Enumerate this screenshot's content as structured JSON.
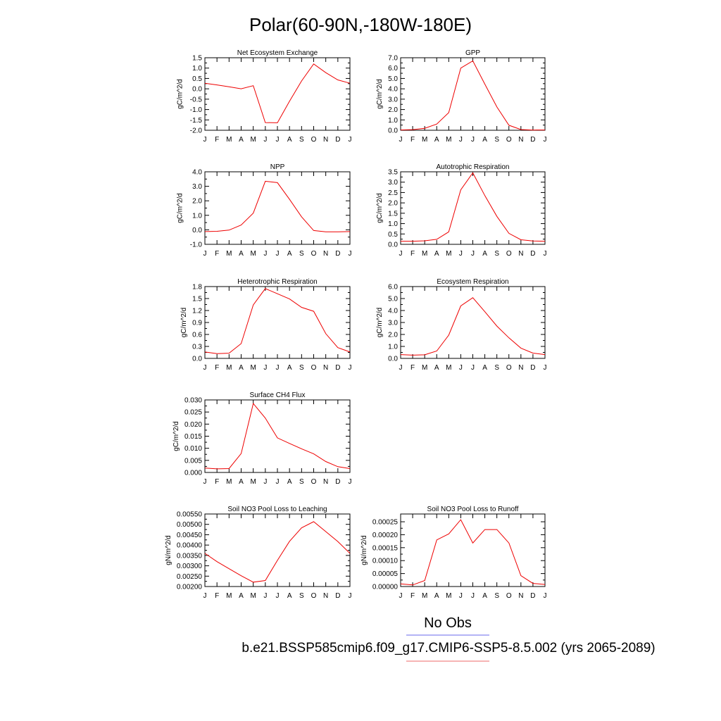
{
  "title": "Polar(60-90N,-180W-180E)",
  "legend": {
    "obs_label": "No Obs",
    "obs_color": "#6a6aee",
    "case_label": "b.e21.BSSP585cmip6.f09_g17.CMIP6-SSP5-8.5.002 (yrs 2065-2089)",
    "case_color": "#ee6a6a"
  },
  "line_color": "#ee0000",
  "chart_data": [
    {
      "type": "line",
      "title": "Net Ecosystem Exchange",
      "ylabel": "gC/m^2/d",
      "categories": [
        "J",
        "F",
        "M",
        "A",
        "M",
        "J",
        "J",
        "A",
        "S",
        "O",
        "N",
        "D",
        "J"
      ],
      "yticks": [
        "1.5",
        "1.0",
        "0.5",
        "0.0",
        "-0.5",
        "-1.0",
        "-1.5",
        "-2.0"
      ],
      "ylim": [
        -2.0,
        1.5
      ],
      "values": [
        0.27,
        0.19,
        0.1,
        0.0,
        0.15,
        -1.63,
        -1.64,
        -0.6,
        0.38,
        1.2,
        0.78,
        0.43,
        0.27
      ]
    },
    {
      "type": "line",
      "title": "GPP",
      "ylabel": "gC/m^2/d",
      "categories": [
        "J",
        "F",
        "M",
        "A",
        "M",
        "J",
        "J",
        "A",
        "S",
        "O",
        "N",
        "D",
        "J"
      ],
      "yticks": [
        "7.0",
        "6.0",
        "5.0",
        "4.0",
        "3.0",
        "2.0",
        "1.0",
        "0.0"
      ],
      "ylim": [
        0,
        7.0
      ],
      "values": [
        0.03,
        0.06,
        0.19,
        0.6,
        1.7,
        6.0,
        6.7,
        4.45,
        2.25,
        0.48,
        0.07,
        0.02,
        0.03
      ]
    },
    {
      "type": "line",
      "title": "NPP",
      "ylabel": "gC/m^2/d",
      "categories": [
        "J",
        "F",
        "M",
        "A",
        "M",
        "J",
        "J",
        "A",
        "S",
        "O",
        "N",
        "D",
        "J"
      ],
      "yticks": [
        "4.0",
        "3.0",
        "2.0",
        "1.0",
        "0.0",
        "-1.0"
      ],
      "ylim": [
        -1.0,
        4.0
      ],
      "values": [
        -0.12,
        -0.1,
        -0.02,
        0.33,
        1.15,
        3.35,
        3.25,
        2.1,
        0.9,
        -0.05,
        -0.14,
        -0.14,
        -0.12
      ]
    },
    {
      "type": "line",
      "title": "Autotrophic Respiration",
      "ylabel": "gC/m^2/d",
      "categories": [
        "J",
        "F",
        "M",
        "A",
        "M",
        "J",
        "J",
        "A",
        "S",
        "O",
        "N",
        "D",
        "J"
      ],
      "yticks": [
        "3.5",
        "3.0",
        "2.5",
        "2.0",
        "1.5",
        "1.0",
        "0.5",
        "0.0"
      ],
      "ylim": [
        0,
        3.5
      ],
      "values": [
        0.15,
        0.15,
        0.17,
        0.24,
        0.6,
        2.63,
        3.45,
        2.35,
        1.35,
        0.53,
        0.22,
        0.16,
        0.15
      ]
    },
    {
      "type": "line",
      "title": "Heterotrophic Respiration",
      "ylabel": "gC/m^2/d",
      "categories": [
        "J",
        "F",
        "M",
        "A",
        "M",
        "J",
        "J",
        "A",
        "S",
        "O",
        "N",
        "D",
        "J"
      ],
      "yticks": [
        "1.8",
        "1.5",
        "1.2",
        "0.9",
        "0.6",
        "0.3",
        "0.0"
      ],
      "ylim": [
        0,
        1.8
      ],
      "values": [
        0.16,
        0.12,
        0.13,
        0.37,
        1.34,
        1.75,
        1.62,
        1.49,
        1.28,
        1.18,
        0.62,
        0.27,
        0.16
      ]
    },
    {
      "type": "line",
      "title": "Ecosystem Respiration",
      "ylabel": "gC/m^2/d",
      "categories": [
        "J",
        "F",
        "M",
        "A",
        "M",
        "J",
        "J",
        "A",
        "S",
        "O",
        "N",
        "D",
        "J"
      ],
      "yticks": [
        "6.0",
        "5.0",
        "4.0",
        "3.0",
        "2.0",
        "1.0",
        "0.0"
      ],
      "ylim": [
        0,
        6.0
      ],
      "values": [
        0.32,
        0.27,
        0.3,
        0.62,
        1.94,
        4.38,
        5.07,
        3.9,
        2.7,
        1.72,
        0.86,
        0.44,
        0.32
      ]
    },
    {
      "type": "line",
      "title": "Surface CH4 Flux",
      "ylabel": "gC/m^2/d",
      "categories": [
        "J",
        "F",
        "M",
        "A",
        "M",
        "J",
        "J",
        "A",
        "S",
        "O",
        "N",
        "D",
        "J"
      ],
      "yticks": [
        "0.030",
        "0.025",
        "0.020",
        "0.015",
        "0.010",
        "0.005",
        "0.000"
      ],
      "ylim": [
        0,
        0.03
      ],
      "values": [
        0.0018,
        0.0015,
        0.0016,
        0.0078,
        0.0285,
        0.0225,
        0.0143,
        0.012,
        0.0098,
        0.0077,
        0.0045,
        0.0024,
        0.0016
      ]
    },
    {
      "type": "line",
      "title": "Soil NO3 Pool Loss to Leaching",
      "ylabel": "gN/m^2/d",
      "categories": [
        "J",
        "F",
        "M",
        "A",
        "M",
        "J",
        "J",
        "A",
        "S",
        "O",
        "N",
        "D",
        "J"
      ],
      "yticks": [
        "0.00550",
        "0.00500",
        "0.00450",
        "0.00400",
        "0.00350",
        "0.00300",
        "0.00250",
        "0.00200"
      ],
      "ylim": [
        0.002,
        0.0055
      ],
      "values": [
        0.0036,
        0.0032,
        0.00286,
        0.00252,
        0.00221,
        0.00229,
        0.00326,
        0.00418,
        0.00483,
        0.00513,
        0.00465,
        0.00417,
        0.0036
      ]
    },
    {
      "type": "line",
      "title": "Soil NO3 Pool Loss to Runoff",
      "ylabel": "gN/m^2/d",
      "categories": [
        "J",
        "F",
        "M",
        "A",
        "M",
        "J",
        "J",
        "A",
        "S",
        "O",
        "N",
        "D",
        "J"
      ],
      "yticks": [
        "0.00025",
        "0.00020",
        "0.00015",
        "0.00010",
        "0.00005",
        "0.00000"
      ],
      "ylim": [
        0,
        0.00028
      ],
      "values": [
        1e-05,
        6e-06,
        2.3e-05,
        0.00018,
        0.000203,
        0.000258,
        0.000168,
        0.00022,
        0.00022,
        0.000168,
        4.2e-05,
        1.2e-05,
        8e-06
      ]
    }
  ]
}
